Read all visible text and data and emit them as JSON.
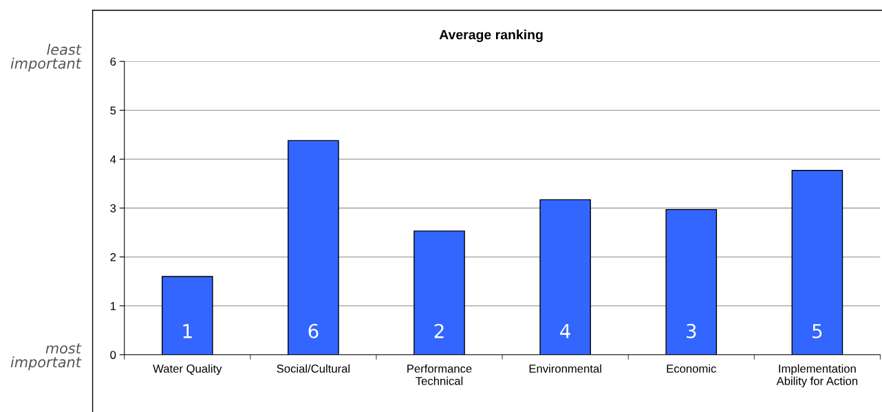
{
  "chart_data": {
    "type": "bar",
    "title": "Average ranking",
    "categories": [
      "Water Quality",
      "Social/Cultural",
      "Performance\nTechnical",
      "Environmental",
      "Economic",
      "Implementation\nAbility for Action"
    ],
    "values": [
      1.6,
      4.38,
      2.53,
      3.17,
      2.97,
      3.77
    ],
    "color": "#3366ff",
    "ylim": [
      0,
      6
    ],
    "yticks": [
      0,
      1,
      2,
      3,
      4,
      5,
      6
    ],
    "grid": "y",
    "annotations": [
      "least\nimportant",
      "most\nimportant",
      "1",
      "6",
      "2",
      "4",
      "3",
      "5"
    ]
  }
}
